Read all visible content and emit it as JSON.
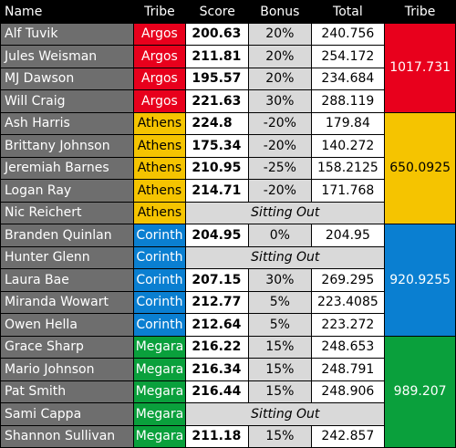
{
  "headers": {
    "name": "Name",
    "tribe": "Tribe",
    "score": "Score",
    "bonus": "Bonus",
    "total": "Total",
    "tribe_total": "Tribe"
  },
  "colors": {
    "Argos": "#e8001c",
    "Athens": "#f5c400",
    "Corinth": "#0a7fd1",
    "Megara": "#0aa03c"
  },
  "sitting_out_label": "Sitting Out",
  "tribes": [
    {
      "name": "Argos",
      "total": "1017.731",
      "players": [
        {
          "name": "Alf Tuvik",
          "tribe": "Argos",
          "score": "200.63",
          "bonus": "20%",
          "total": "240.756"
        },
        {
          "name": "Jules Weisman",
          "tribe": "Argos",
          "score": "211.81",
          "bonus": "20%",
          "total": "254.172"
        },
        {
          "name": "MJ Dawson",
          "tribe": "Argos",
          "score": "195.57",
          "bonus": "20%",
          "total": "234.684"
        },
        {
          "name": "Will Craig",
          "tribe": "Argos",
          "score": "221.63",
          "bonus": "30%",
          "total": "288.119"
        }
      ]
    },
    {
      "name": "Athens",
      "total": "650.0925",
      "players": [
        {
          "name": "Ash Harris",
          "tribe": "Athens",
          "score": "224.8",
          "bonus": "-20%",
          "total": "179.84"
        },
        {
          "name": "Brittany Johnson",
          "tribe": "Athens",
          "score": "175.34",
          "bonus": "-20%",
          "total": "140.272"
        },
        {
          "name": "Jeremiah Barnes",
          "tribe": "Athens",
          "score": "210.95",
          "bonus": "-25%",
          "total": "158.2125"
        },
        {
          "name": "Logan Ray",
          "tribe": "Athens",
          "score": "214.71",
          "bonus": "-20%",
          "total": "171.768"
        },
        {
          "name": "Nic Reichert",
          "tribe": "Athens",
          "sitting_out": true
        }
      ]
    },
    {
      "name": "Corinth",
      "total": "920.9255",
      "players": [
        {
          "name": "Branden Quinlan",
          "tribe": "Corinth",
          "score": "204.95",
          "bonus": "0%",
          "total": "204.95"
        },
        {
          "name": "Hunter Glenn",
          "tribe": "Corinth",
          "sitting_out": true
        },
        {
          "name": "Laura Bae",
          "tribe": "Corinth",
          "score": "207.15",
          "bonus": "30%",
          "total": "269.295"
        },
        {
          "name": "Miranda Wowart",
          "tribe": "Corinth",
          "score": "212.77",
          "bonus": "5%",
          "total": "223.4085"
        },
        {
          "name": "Owen Hella",
          "tribe": "Corinth",
          "score": "212.64",
          "bonus": "5%",
          "total": "223.272"
        }
      ]
    },
    {
      "name": "Megara",
      "total": "989.207",
      "players": [
        {
          "name": "Grace Sharp",
          "tribe": "Megara",
          "score": "216.22",
          "bonus": "15%",
          "total": "248.653"
        },
        {
          "name": "Mario Johnson",
          "tribe": "Megara",
          "score": "216.34",
          "bonus": "15%",
          "total": "248.791"
        },
        {
          "name": "Pat Smith",
          "tribe": "Megara",
          "score": "216.44",
          "bonus": "15%",
          "total": "248.906"
        },
        {
          "name": "Sami Cappa",
          "tribe": "Megara",
          "sitting_out": true
        },
        {
          "name": "Shannon Sullivan",
          "tribe": "Megara",
          "score": "211.18",
          "bonus": "15%",
          "total": "242.857"
        }
      ]
    }
  ]
}
